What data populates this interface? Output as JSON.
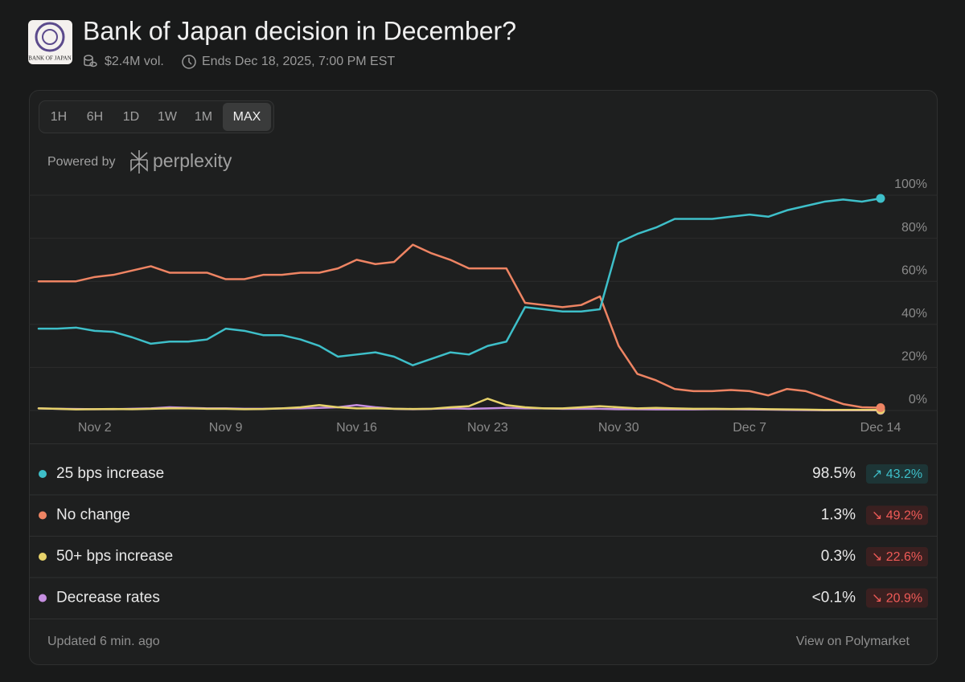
{
  "header": {
    "logo_text": "BANK OF JAPAN",
    "title": "Bank of Japan decision in December?",
    "volume": "$2.4M vol.",
    "ends": "Ends Dec 18, 2025, 7:00 PM EST"
  },
  "ranges": [
    "1H",
    "6H",
    "1D",
    "1W",
    "1M",
    "MAX"
  ],
  "selected_range": 5,
  "powered": {
    "label": "Powered by",
    "brand": "perplexity"
  },
  "chart_data": {
    "type": "line",
    "categories": [
      null,
      null,
      null,
      "Nov 2",
      null,
      null,
      null,
      null,
      null,
      null,
      "Nov 9",
      null,
      null,
      null,
      null,
      null,
      null,
      "Nov 16",
      null,
      null,
      null,
      null,
      null,
      null,
      "Nov 23",
      null,
      null,
      null,
      null,
      null,
      null,
      "Nov 30",
      null,
      null,
      null,
      null,
      null,
      null,
      "Dec 7",
      null,
      null,
      null,
      null,
      null,
      null,
      "Dec 14"
    ],
    "ylim": [
      0,
      100
    ],
    "yticks": [
      {
        "value": 0,
        "label": "0%"
      },
      {
        "value": 20,
        "label": "20%"
      },
      {
        "value": 40,
        "label": "40%"
      },
      {
        "value": 60,
        "label": "60%"
      },
      {
        "value": 80,
        "label": "80%"
      },
      {
        "value": 100,
        "label": "100%"
      }
    ],
    "grid": true,
    "series": [
      {
        "name": "25 bps increase",
        "color": "#3ebfc9",
        "values": [
          38,
          38,
          38.5,
          37,
          36.5,
          34,
          31,
          32,
          32,
          33,
          38,
          37,
          35,
          35,
          33,
          30,
          25,
          26,
          27,
          25,
          21,
          24,
          27,
          26,
          30,
          32,
          48,
          47,
          46,
          46,
          47,
          78,
          82,
          85,
          89,
          89,
          89,
          90,
          91,
          90,
          93,
          95,
          97,
          98,
          97,
          98.5
        ]
      },
      {
        "name": "No change",
        "color": "#ee8463",
        "values": [
          60,
          60,
          60,
          62,
          63,
          65,
          67,
          64,
          64,
          64,
          61,
          61,
          63,
          63,
          64,
          64,
          66,
          70,
          68,
          69,
          77,
          73,
          70,
          66,
          66,
          66,
          50,
          49,
          48,
          49,
          53,
          30,
          17,
          14,
          10,
          9,
          9,
          9.5,
          9,
          7,
          10,
          9,
          6,
          3,
          1.5,
          1.3
        ]
      },
      {
        "name": "50+ bps increase",
        "color": "#e7d26a",
        "values": [
          1,
          0.8,
          0.5,
          0.6,
          0.7,
          0.6,
          0.8,
          1,
          1,
          0.8,
          0.8,
          0.6,
          0.7,
          1,
          1.5,
          2.5,
          1.5,
          1,
          1,
          0.8,
          0.7,
          0.8,
          1.5,
          2,
          5.5,
          2.5,
          1.5,
          1,
          1,
          1.5,
          2,
          1.5,
          1,
          1.2,
          1,
          0.8,
          0.8,
          0.7,
          0.8,
          0.6,
          0.5,
          0.4,
          0.3,
          0.3,
          0.3,
          0.3
        ]
      },
      {
        "name": "Decrease rates",
        "color": "#c58ee0",
        "values": [
          1,
          0.8,
          0.7,
          0.6,
          0.6,
          0.8,
          1,
          1.5,
          1.2,
          1,
          1,
          0.8,
          0.8,
          1,
          1,
          1.2,
          1.5,
          2.5,
          1.5,
          0.8,
          0.6,
          0.8,
          1,
          0.8,
          1,
          1.2,
          1,
          1,
          0.8,
          0.8,
          0.8,
          0.6,
          0.6,
          0.5,
          0.5,
          0.5,
          0.6,
          0.6,
          0.5,
          0.4,
          0.3,
          0.2,
          0.1,
          0.1,
          0.1,
          0.1
        ]
      }
    ]
  },
  "outcomes": [
    {
      "value": "98.5%",
      "change": "↗ 43.2%",
      "trend": "up"
    },
    {
      "value": "1.3%",
      "change": "↘ 49.2%",
      "trend": "down"
    },
    {
      "value": "0.3%",
      "change": "↘ 22.6%",
      "trend": "down"
    },
    {
      "value": "<0.1%",
      "change": "↘ 20.9%",
      "trend": "down"
    }
  ],
  "footer": {
    "updated": "Updated 6 min. ago",
    "link": "View on Polymarket"
  }
}
